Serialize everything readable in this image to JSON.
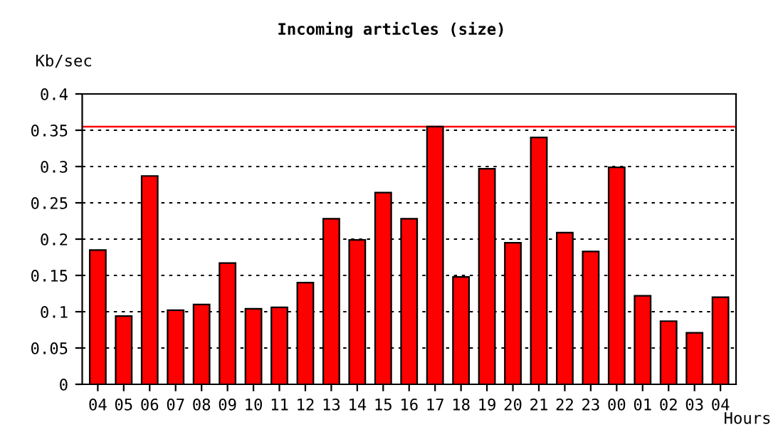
{
  "chart_data": {
    "type": "bar",
    "title": "Incoming articles (size)",
    "ylabel": "Kb/sec",
    "xlabel": "Hours",
    "categories": [
      "04",
      "05",
      "06",
      "07",
      "08",
      "09",
      "10",
      "11",
      "12",
      "13",
      "14",
      "15",
      "16",
      "17",
      "18",
      "19",
      "20",
      "21",
      "22",
      "23",
      "00",
      "01",
      "02",
      "03",
      "04"
    ],
    "values": [
      0.185,
      0.094,
      0.287,
      0.102,
      0.11,
      0.167,
      0.104,
      0.106,
      0.14,
      0.228,
      0.199,
      0.264,
      0.228,
      0.355,
      0.148,
      0.297,
      0.195,
      0.34,
      0.209,
      0.183,
      0.299,
      0.122,
      0.087,
      0.071,
      0.12
    ],
    "color": "#ff0000",
    "ylim": [
      0,
      0.4
    ],
    "yticks": [
      0,
      0.05,
      0.1,
      0.15,
      0.2,
      0.25,
      0.3,
      0.35,
      0.4
    ],
    "grid": "y",
    "ref_lines": [
      {
        "axis": "y",
        "value": 0.355,
        "color": "#ff0000",
        "line_style": "solid"
      }
    ]
  }
}
